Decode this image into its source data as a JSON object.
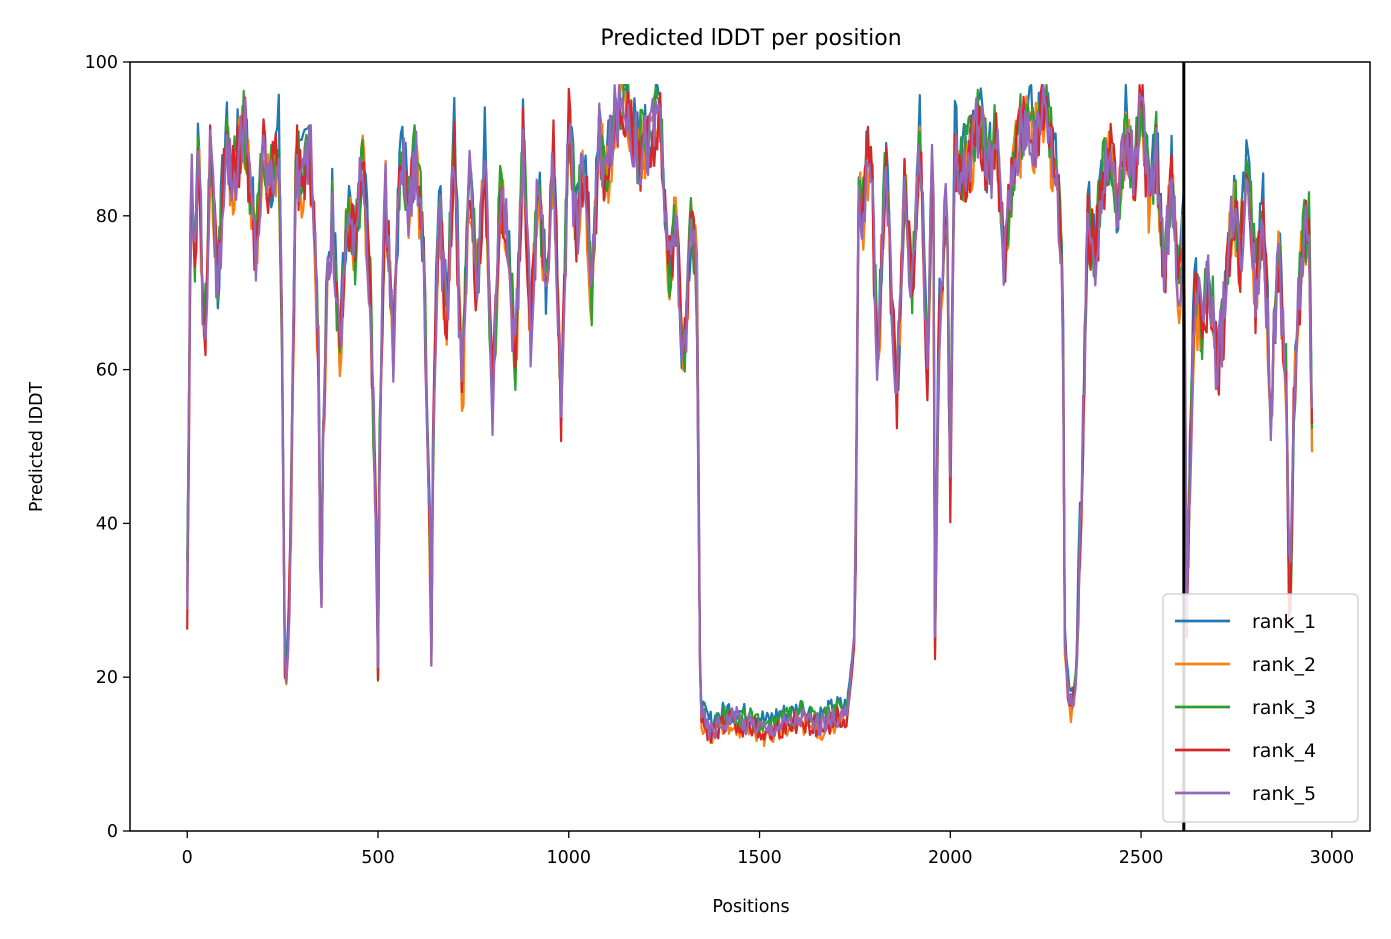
{
  "chart_data": {
    "type": "line",
    "title": "Predicted lDDT per position",
    "xlabel": "Positions",
    "ylabel": "Predicted lDDT",
    "xlim": [
      -150,
      3100
    ],
    "ylim": [
      0,
      100
    ],
    "xticks": [
      0,
      500,
      1000,
      1500,
      2000,
      2500,
      3000
    ],
    "yticks": [
      0,
      20,
      40,
      60,
      80,
      100
    ],
    "xtick_labels": [
      "0",
      "500",
      "1000",
      "1500",
      "2000",
      "2500",
      "3000"
    ],
    "ytick_labels": [
      "0",
      "20",
      "40",
      "60",
      "80",
      "100"
    ],
    "legend_position": "lower-right",
    "vertical_line": {
      "x": 2612,
      "color": "#000000"
    },
    "grid": false,
    "series": [
      {
        "name": "rank_1",
        "color": "#1f77b4",
        "offset": 0.6
      },
      {
        "name": "rank_2",
        "color": "#ff7f0e",
        "offset": -0.4
      },
      {
        "name": "rank_3",
        "color": "#2ca02c",
        "offset": 0.3
      },
      {
        "name": "rank_4",
        "color": "#d62728",
        "offset": -0.2
      },
      {
        "name": "rank_5",
        "color": "#9467bd",
        "offset": 0.0
      }
    ],
    "profile": {
      "x": [
        0,
        10,
        20,
        30,
        45,
        60,
        80,
        100,
        120,
        150,
        180,
        200,
        220,
        240,
        250,
        255,
        260,
        270,
        285,
        300,
        320,
        330,
        345,
        350,
        355,
        365,
        380,
        400,
        420,
        440,
        460,
        480,
        495,
        500,
        505,
        520,
        540,
        560,
        580,
        600,
        620,
        635,
        640,
        645,
        660,
        680,
        700,
        720,
        740,
        760,
        780,
        800,
        820,
        840,
        860,
        880,
        900,
        920,
        940,
        960,
        980,
        1000,
        1020,
        1040,
        1060,
        1080,
        1100,
        1120,
        1150,
        1180,
        1210,
        1240,
        1260,
        1280,
        1300,
        1320,
        1335,
        1345,
        1355,
        1370,
        1400,
        1430,
        1460,
        1490,
        1520,
        1550,
        1580,
        1610,
        1640,
        1670,
        1700,
        1730,
        1750,
        1760,
        1770,
        1790,
        1810,
        1830,
        1860,
        1880,
        1900,
        1920,
        1940,
        1955,
        1960,
        1970,
        1990,
        2000,
        2010,
        2030,
        2050,
        2080,
        2100,
        2120,
        2140,
        2170,
        2200,
        2230,
        2250,
        2265,
        2280,
        2295,
        2300,
        2310,
        2320,
        2330,
        2345,
        2360,
        2380,
        2400,
        2420,
        2440,
        2460,
        2480,
        2500,
        2520,
        2540,
        2560,
        2580,
        2600,
        2612,
        2620,
        2640,
        2660,
        2680,
        2700,
        2720,
        2740,
        2760,
        2780,
        2800,
        2820,
        2840,
        2860,
        2880,
        2890,
        2900,
        2920,
        2940,
        2950
      ],
      "y": [
        30,
        86,
        75,
        90,
        60,
        88,
        70,
        90,
        85,
        92,
        75,
        88,
        84,
        90,
        60,
        22,
        20,
        35,
        88,
        84,
        90,
        82,
        60,
        25,
        45,
        70,
        80,
        62,
        82,
        75,
        88,
        70,
        40,
        20,
        55,
        85,
        62,
        90,
        80,
        88,
        75,
        40,
        23,
        55,
        82,
        65,
        90,
        55,
        85,
        70,
        88,
        55,
        82,
        78,
        60,
        90,
        65,
        85,
        70,
        88,
        55,
        92,
        78,
        88,
        70,
        90,
        85,
        93,
        95,
        88,
        90,
        94,
        72,
        80,
        60,
        78,
        75,
        16,
        14,
        13,
        14,
        15,
        14,
        14,
        13,
        14,
        14,
        15,
        14,
        14,
        15,
        15,
        25,
        85,
        80,
        90,
        60,
        88,
        55,
        85,
        70,
        90,
        60,
        92,
        24,
        65,
        82,
        45,
        90,
        85,
        88,
        92,
        85,
        90,
        75,
        88,
        93,
        90,
        97,
        88,
        85,
        70,
        25,
        17,
        16,
        20,
        45,
        80,
        75,
        85,
        88,
        80,
        92,
        85,
        96,
        82,
        88,
        72,
        85,
        70,
        80,
        30,
        70,
        65,
        72,
        60,
        68,
        82,
        75,
        88,
        70,
        80,
        55,
        75,
        60,
        25,
        55,
        75,
        80,
        45
      ]
    }
  }
}
